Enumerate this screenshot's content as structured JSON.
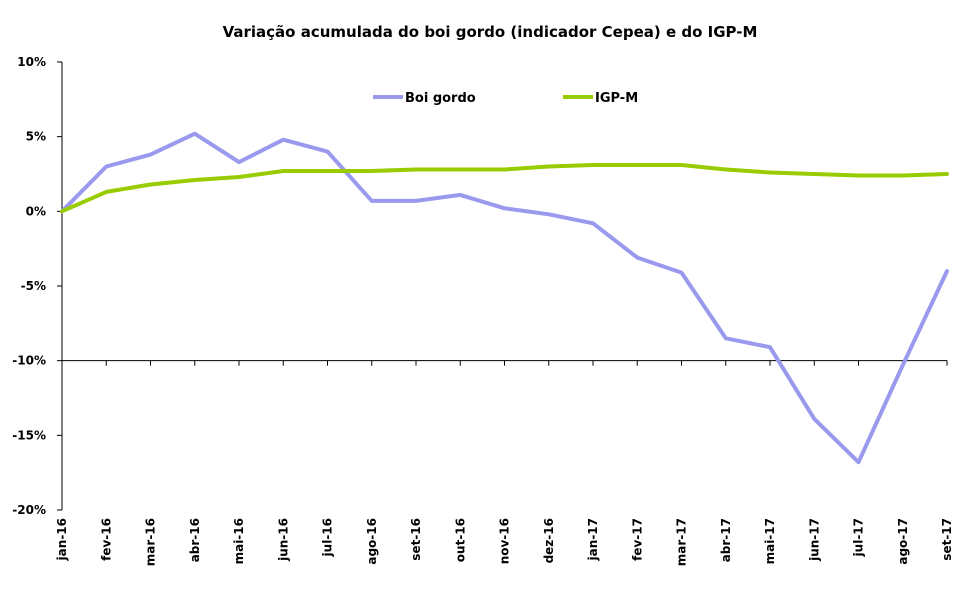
{
  "chart_data": {
    "type": "line",
    "title": "Variação acumulada do boi gordo (indicador Cepea) e do IGP-M",
    "xlabel": "",
    "ylabel": "",
    "categories": [
      "jan-16",
      "fev-16",
      "mar-16",
      "abr-16",
      "mai-16",
      "jun-16",
      "jul-16",
      "ago-16",
      "set-16",
      "out-16",
      "nov-16",
      "dez-16",
      "jan-17",
      "fev-17",
      "mar-17",
      "abr-17",
      "mai-17",
      "jun-17",
      "jul-17",
      "ago-17",
      "set-17"
    ],
    "yticks": [
      "10%",
      "5%",
      "0%",
      "-5%",
      "-10%",
      "-15%",
      "-20%"
    ],
    "ytick_values": [
      10,
      5,
      0,
      -5,
      -10,
      -15,
      -20
    ],
    "ylim": [
      -20,
      10
    ],
    "grid": false,
    "legend_position": "top",
    "series": [
      {
        "name": "Boi gordo",
        "color": "#9999ee",
        "values": [
          0,
          3.0,
          3.8,
          5.2,
          3.3,
          4.8,
          4.0,
          0.7,
          0.7,
          1.1,
          0.2,
          -0.2,
          -0.8,
          -3.1,
          -4.1,
          -8.5,
          -9.1,
          -13.9,
          -16.8,
          -10.3,
          -4.0
        ]
      },
      {
        "name": "IGP-M",
        "color": "#99cc00",
        "values": [
          0,
          1.3,
          1.8,
          2.1,
          2.3,
          2.7,
          2.7,
          2.7,
          2.8,
          2.8,
          2.8,
          3.0,
          3.1,
          3.1,
          3.1,
          2.8,
          2.6,
          2.5,
          2.4,
          2.4,
          2.5
        ]
      }
    ]
  }
}
